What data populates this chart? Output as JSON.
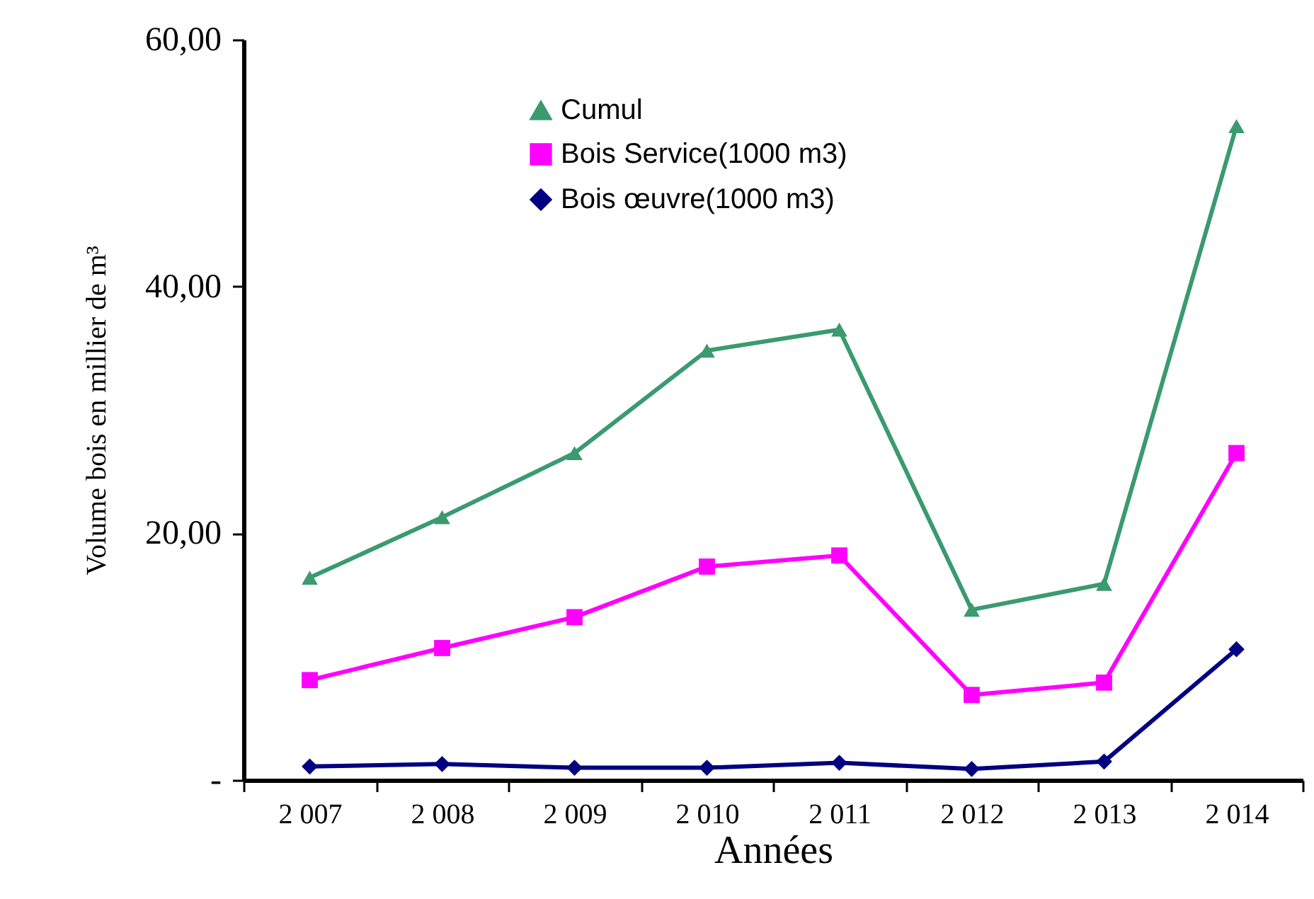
{
  "chart_data": {
    "type": "line",
    "xlabel": "Années",
    "ylabel": "Volume bois en millier de m³",
    "categories": [
      "2 007",
      "2 008",
      "2 009",
      "2 010",
      "2 011",
      "2 012",
      "2 013",
      "2 014"
    ],
    "ylim": [
      0,
      60
    ],
    "yticks": [
      {
        "value": 0,
        "label": "-"
      },
      {
        "value": 20,
        "label": "20,00"
      },
      {
        "value": 40,
        "label": "40,00"
      },
      {
        "value": 60,
        "label": "60,00"
      }
    ],
    "grid": false,
    "legend": "top left",
    "series": [
      {
        "name": "Cumul",
        "color": "#3a9a70",
        "marker": "triangle",
        "values": [
          16.4,
          21.3,
          26.5,
          34.8,
          36.5,
          13.8,
          15.9,
          53.0
        ]
      },
      {
        "name": "Bois Service(1000 m3)",
        "color": "#ff00ff",
        "marker": "square",
        "values": [
          8.1,
          10.7,
          13.2,
          17.3,
          18.2,
          6.9,
          7.9,
          26.5
        ]
      },
      {
        "name": "Bois œuvre(1000 m3)",
        "color": "#000080",
        "marker": "diamond",
        "values": [
          1.1,
          1.3,
          1.0,
          1.0,
          1.4,
          0.9,
          1.5,
          10.6
        ]
      }
    ]
  }
}
